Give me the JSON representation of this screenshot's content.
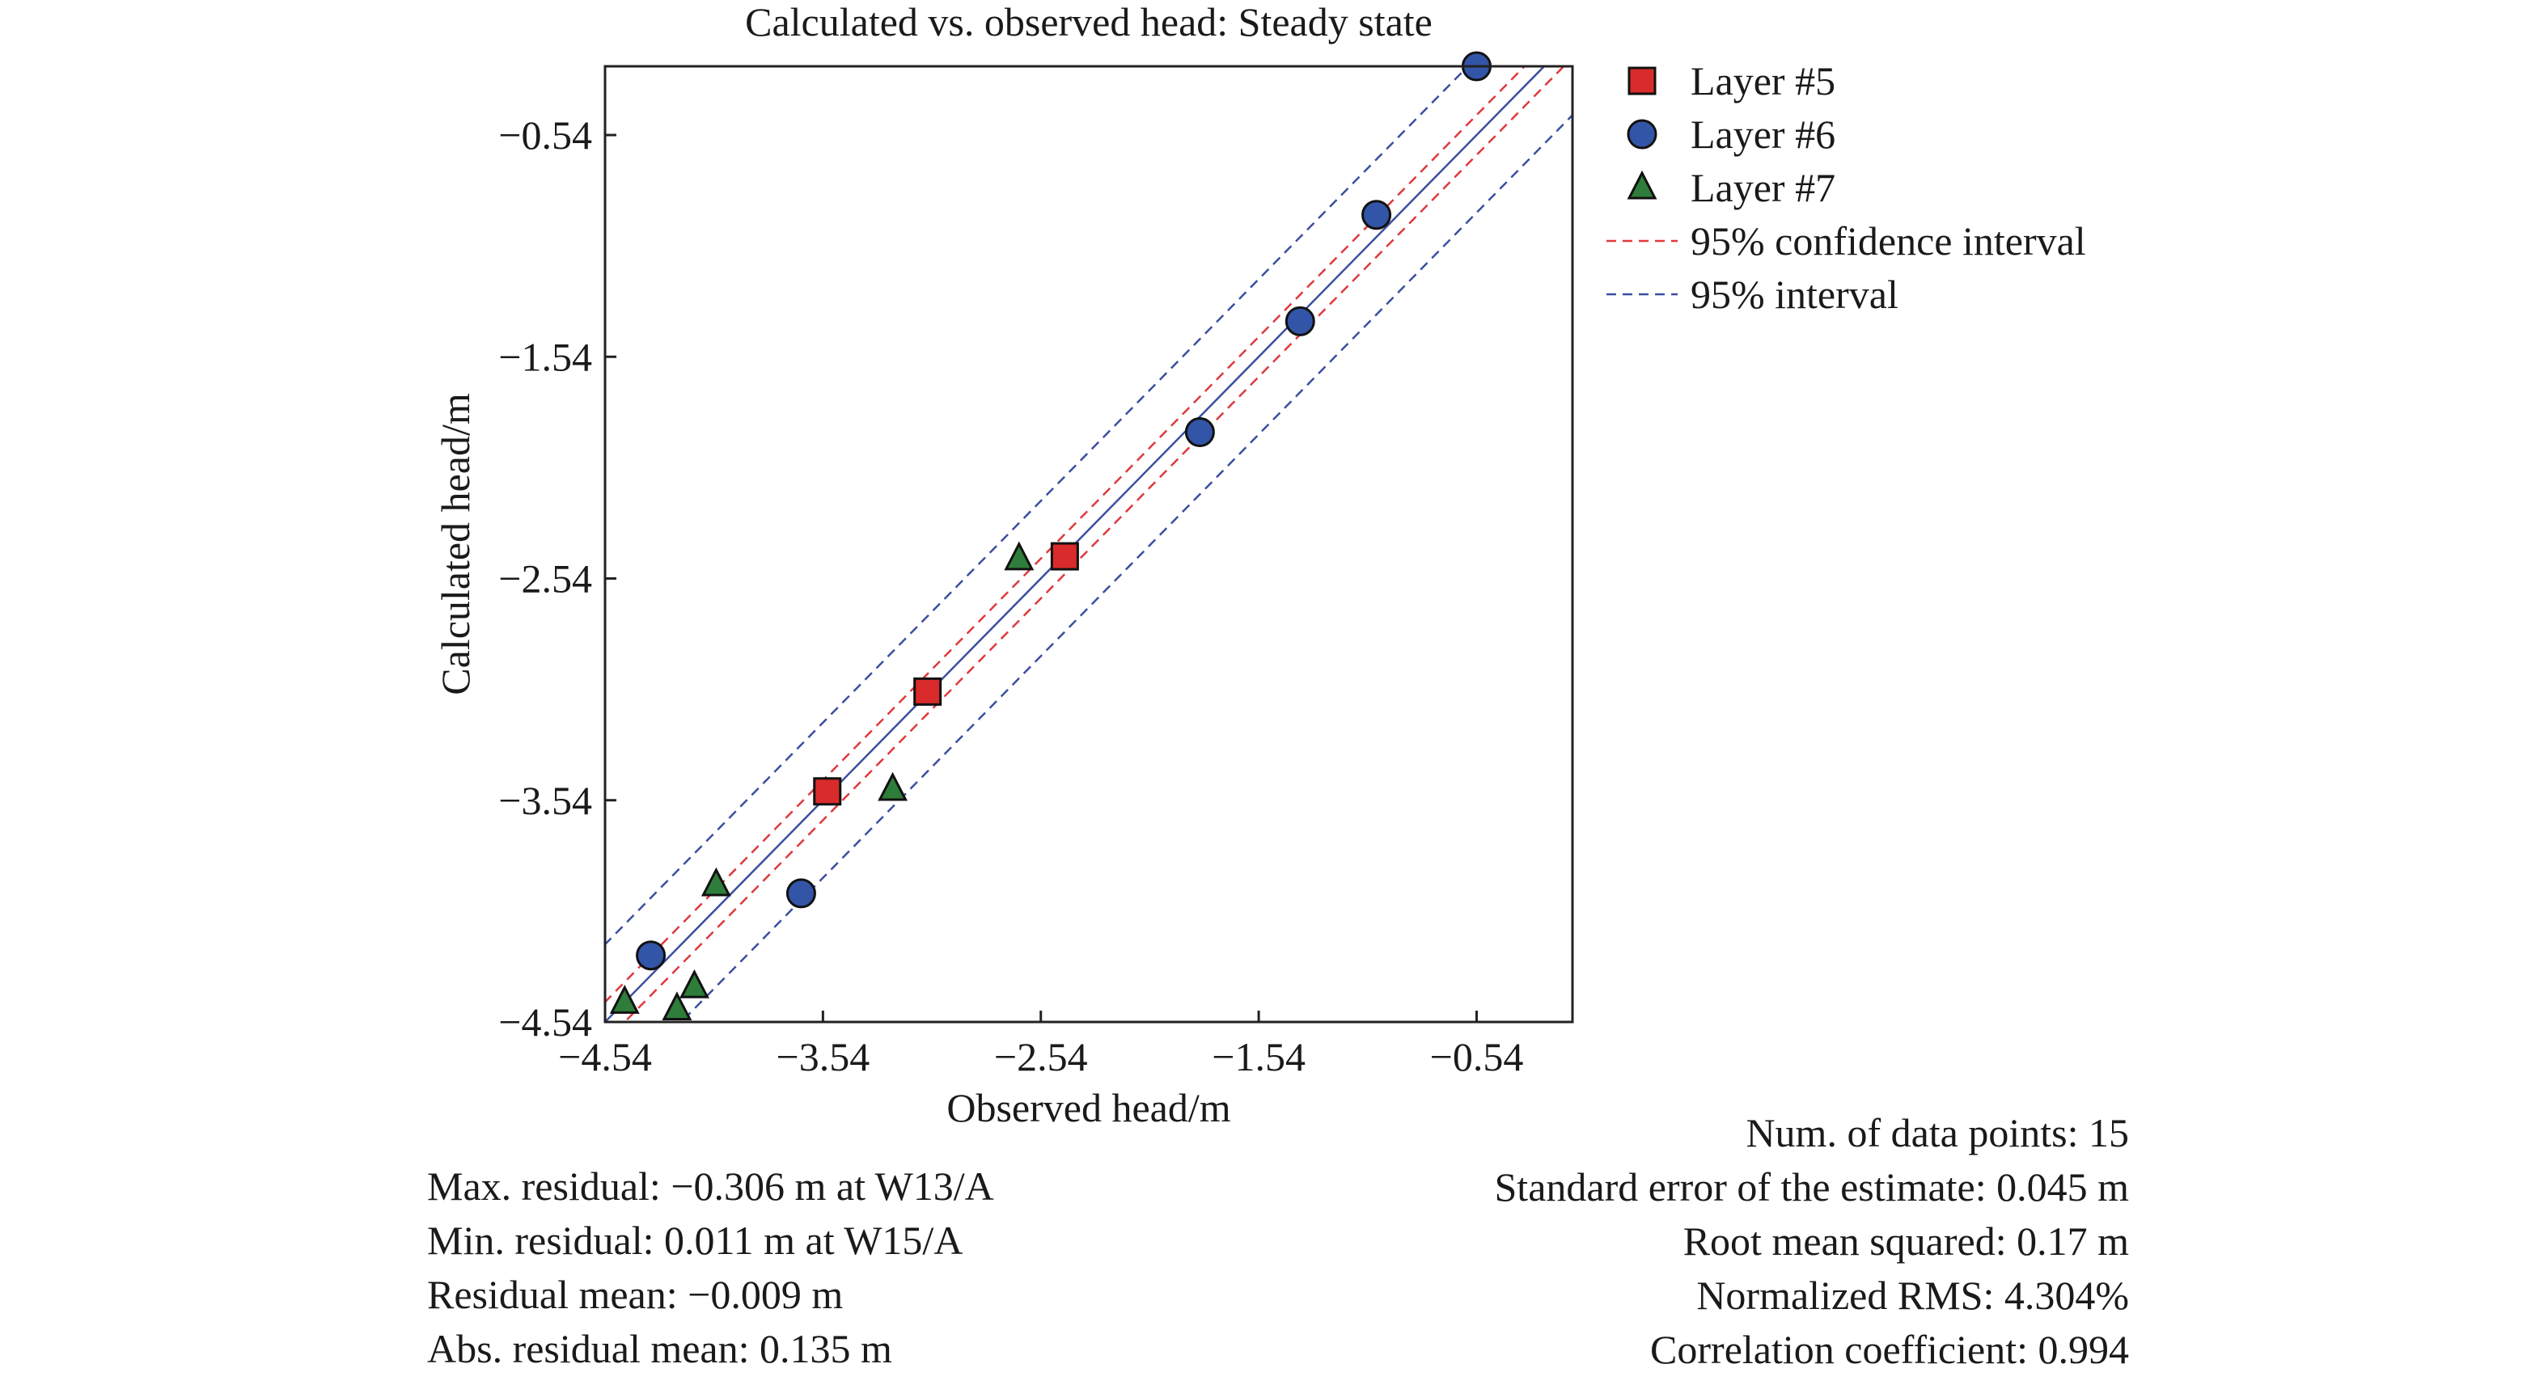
{
  "chart_data": {
    "type": "scatter",
    "title": "Calculated vs. observed head: Steady state",
    "xlabel": "Observed head/m",
    "ylabel": "Calculated head/m",
    "xlim": [
      -4.54,
      -0.1
    ],
    "ylim": [
      -4.54,
      -0.23
    ],
    "xticks": [
      -4.54,
      -3.54,
      -2.54,
      -1.54,
      -0.54
    ],
    "yticks": [
      -4.54,
      -3.54,
      -2.54,
      -1.54,
      -0.54
    ],
    "xtick_labels": [
      "−4.54",
      "−3.54",
      "−2.54",
      "−1.54",
      "−0.54"
    ],
    "ytick_labels": [
      "−4.54",
      "−3.54",
      "−2.54",
      "−1.54",
      "−0.54"
    ],
    "grid": false,
    "legend_position": "outside-right",
    "series": [
      {
        "name": "Layer #5",
        "marker": "square",
        "color": "#d92b2b",
        "points": [
          [
            -3.52,
            -3.5
          ],
          [
            -3.06,
            -3.05
          ],
          [
            -2.43,
            -2.44
          ]
        ]
      },
      {
        "name": "Layer #6",
        "marker": "circle",
        "color": "#3355a8",
        "points": [
          [
            -4.33,
            -4.24
          ],
          [
            -3.64,
            -3.96
          ],
          [
            -1.81,
            -1.88
          ],
          [
            -1.35,
            -1.38
          ],
          [
            -1.0,
            -0.9
          ],
          [
            -0.54,
            -0.23
          ]
        ]
      },
      {
        "name": "Layer #7",
        "marker": "triangle",
        "color": "#2e7d3a",
        "points": [
          [
            -4.45,
            -4.45
          ],
          [
            -4.21,
            -4.48
          ],
          [
            -4.13,
            -4.38
          ],
          [
            -4.03,
            -3.92
          ],
          [
            -3.22,
            -3.49
          ],
          [
            -2.64,
            -2.45
          ]
        ]
      }
    ],
    "lines": [
      {
        "name": "",
        "style": "solid",
        "color": "#3b4fa0",
        "offset": 0
      },
      {
        "name": "95% confidence interval",
        "style": "dashed",
        "color": "#e0393c",
        "offset": 0.09
      },
      {
        "name": "95% interval",
        "style": "dashed",
        "color": "#3b4fa0",
        "offset": 0.35
      }
    ]
  },
  "stats_left": [
    "Max. residual: −0.306 m at W13/A",
    "Min. residual: 0.011 m at W15/A",
    "Residual mean: −0.009 m",
    "Abs. residual mean: 0.135 m"
  ],
  "stats_right": [
    "Num. of data points: 15",
    "Standard error of the estimate: 0.045 m",
    "Root mean squared: 0.17 m",
    "Normalized RMS: 4.304%",
    "Correlation coefficient: 0.994"
  ]
}
